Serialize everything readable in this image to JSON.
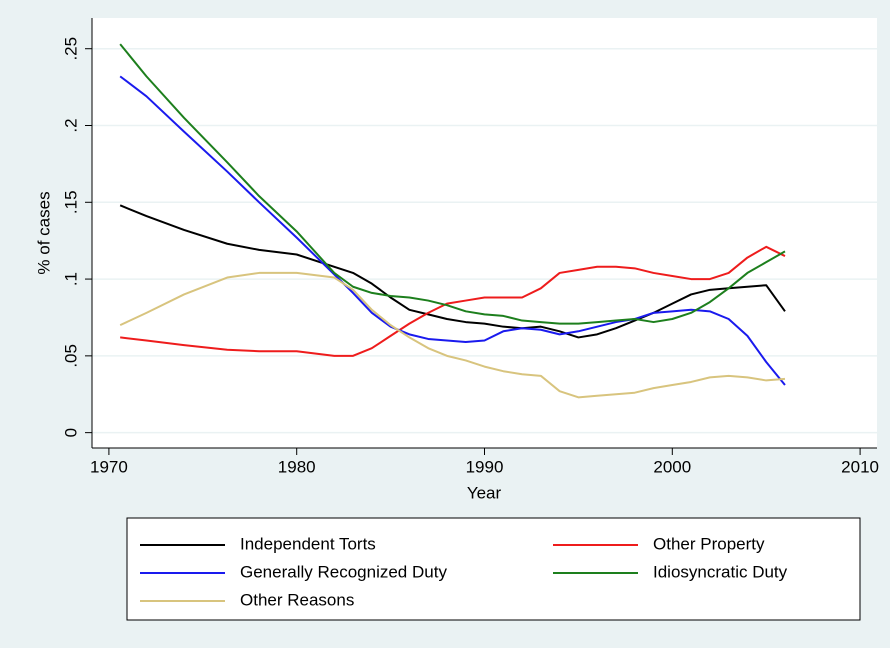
{
  "chart_data": {
    "type": "line",
    "x_label": "Year",
    "y_label": "% of cases",
    "x": [
      1970.6,
      1972,
      1974,
      1976.3,
      1978,
      1980,
      1982,
      1983,
      1984,
      1985,
      1986,
      1987,
      1988,
      1989,
      1990,
      1991,
      1992,
      1993,
      1994,
      1995,
      1996,
      1997,
      1998,
      1999,
      2000,
      2001,
      2002,
      2003,
      2004,
      2005,
      2006
    ],
    "series": [
      {
        "name": "Independent Torts",
        "color": "#000000",
        "values": [
          0.148,
          0.141,
          0.132,
          0.123,
          0.119,
          0.116,
          0.108,
          0.104,
          0.097,
          0.088,
          0.08,
          0.077,
          0.074,
          0.072,
          0.071,
          0.069,
          0.068,
          0.069,
          0.066,
          0.062,
          0.064,
          0.068,
          0.073,
          0.078,
          0.084,
          0.09,
          0.093,
          0.094,
          0.095,
          0.096,
          0.079
        ]
      },
      {
        "name": "Other Property",
        "color": "#ee1c1c",
        "values": [
          0.062,
          0.06,
          0.057,
          0.054,
          0.053,
          0.053,
          0.05,
          0.05,
          0.055,
          0.063,
          0.071,
          0.078,
          0.084,
          0.086,
          0.088,
          0.088,
          0.088,
          0.094,
          0.104,
          0.106,
          0.108,
          0.108,
          0.107,
          0.104,
          0.102,
          0.1,
          0.1,
          0.104,
          0.114,
          0.121,
          0.115
        ]
      },
      {
        "name": "Generally Recognized Duty",
        "color": "#1a1aee",
        "values": [
          0.232,
          0.219,
          0.196,
          0.17,
          0.15,
          0.127,
          0.103,
          0.091,
          0.078,
          0.069,
          0.064,
          0.061,
          0.06,
          0.059,
          0.06,
          0.066,
          0.068,
          0.067,
          0.064,
          0.066,
          0.069,
          0.072,
          0.074,
          0.078,
          0.079,
          0.08,
          0.079,
          0.074,
          0.063,
          0.046,
          0.031
        ]
      },
      {
        "name": "Idiosyncratic Duty",
        "color": "#1d7f1d",
        "values": [
          0.253,
          0.232,
          0.205,
          0.176,
          0.154,
          0.131,
          0.104,
          0.095,
          0.091,
          0.089,
          0.088,
          0.086,
          0.083,
          0.079,
          0.077,
          0.076,
          0.073,
          0.072,
          0.071,
          0.071,
          0.072,
          0.073,
          0.074,
          0.072,
          0.074,
          0.078,
          0.085,
          0.094,
          0.104,
          0.111,
          0.118
        ]
      },
      {
        "name": "Other Reasons",
        "color": "#d8c47e",
        "values": [
          0.07,
          0.078,
          0.09,
          0.101,
          0.104,
          0.104,
          0.101,
          0.093,
          0.08,
          0.07,
          0.062,
          0.055,
          0.05,
          0.047,
          0.043,
          0.04,
          0.038,
          0.037,
          0.027,
          0.023,
          0.024,
          0.025,
          0.026,
          0.029,
          0.031,
          0.033,
          0.036,
          0.037,
          0.036,
          0.034,
          0.035
        ]
      }
    ],
    "xlim": [
      1969.1,
      2010.9
    ],
    "xticks": [
      1970,
      1980,
      1990,
      2000,
      2010
    ],
    "ylim": [
      -0.01,
      0.27
    ],
    "yticks": [
      0,
      {
        "value": 0.05,
        "label": ".05"
      },
      {
        "value": 0.1,
        "label": ".1"
      },
      {
        "value": 0.15,
        "label": ".15"
      },
      {
        "value": 0.2,
        "label": ".2"
      },
      {
        "value": 0.25,
        "label": ".25"
      }
    ],
    "grid": true,
    "legend": "bottom"
  }
}
